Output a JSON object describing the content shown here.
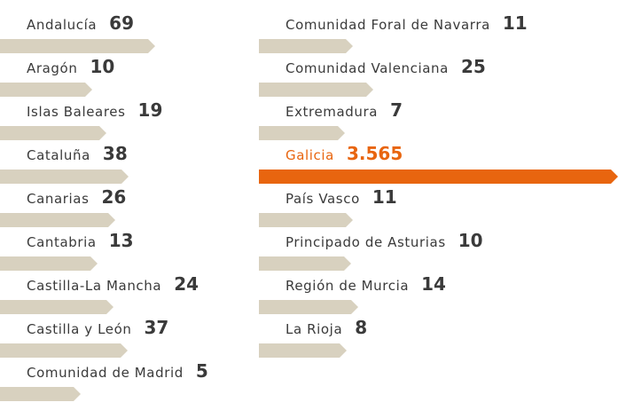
{
  "chart_data": {
    "type": "bar",
    "orientation": "horizontal",
    "columns": [
      {
        "categories": [
          "Andalucía",
          "Aragón",
          "Islas Baleares",
          "Cataluña",
          "Canarias",
          "Cantabria",
          "Castilla-La Mancha",
          "Castilla y León",
          "Comunidad de Madrid"
        ],
        "values": [
          69,
          10,
          19,
          38,
          26,
          13,
          24,
          37,
          5
        ],
        "labels": [
          "69",
          "10",
          "19",
          "38",
          "26",
          "13",
          "24",
          "37",
          "5"
        ]
      },
      {
        "categories": [
          "Comunidad Foral de Navarra",
          "Comunidad Valenciana",
          "Extremadura",
          "Galicia",
          "País Vasco",
          "Principado de Asturias",
          "Región de Murcia",
          "La Rioja"
        ],
        "values": [
          11,
          25,
          7,
          3565,
          11,
          10,
          14,
          8
        ],
        "labels": [
          "11",
          "25",
          "7",
          "3.565",
          "11",
          "10",
          "14",
          "8"
        ]
      }
    ],
    "highlight": "Galicia",
    "colors": {
      "bar": "#d8d1bf",
      "highlight": "#e8650f",
      "text": "#3a3a3a"
    }
  }
}
